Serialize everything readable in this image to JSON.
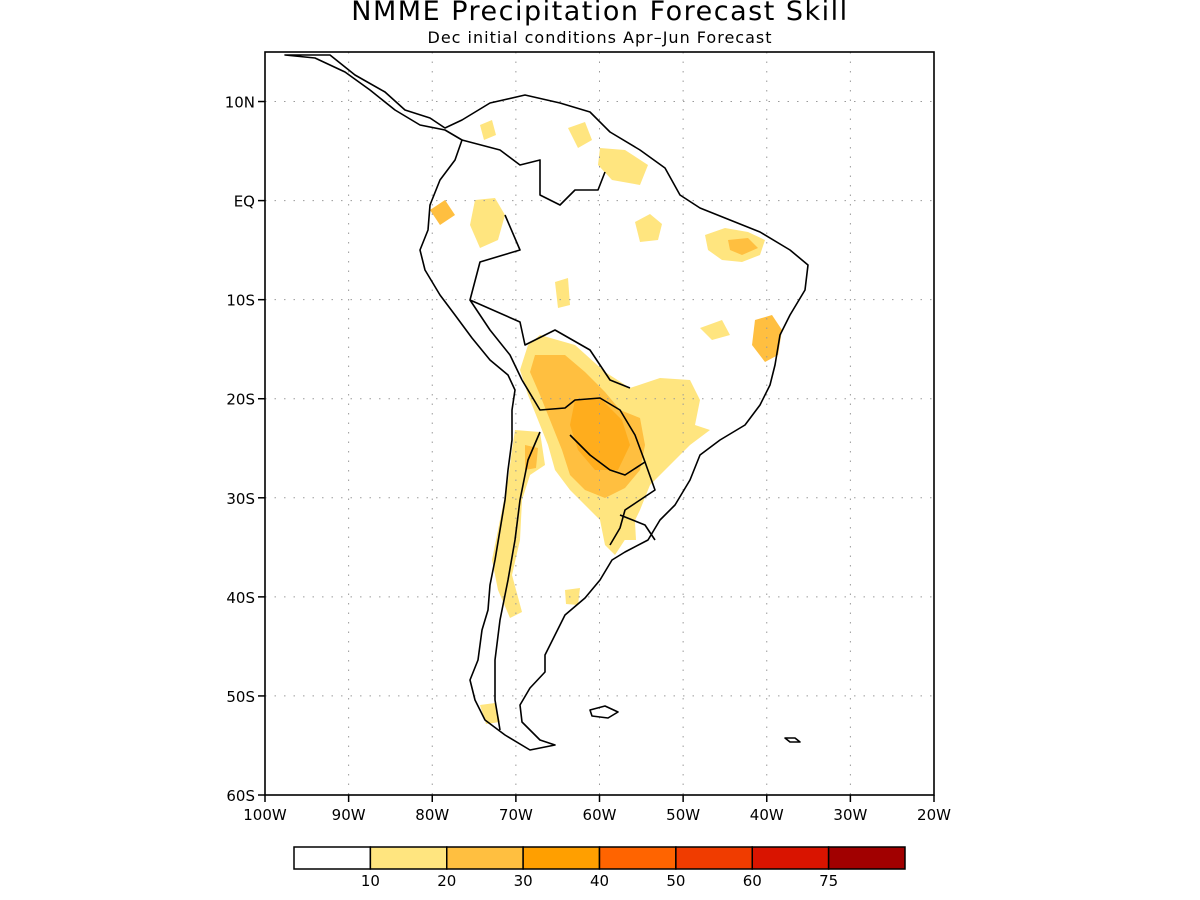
{
  "title": "NMME Precipitation Forecast Skill",
  "subtitle": "Dec initial conditions  Apr–Jun Forecast",
  "map": {
    "lon_range": [
      -100,
      -20
    ],
    "lat_range": [
      -60,
      15
    ],
    "lat_ticks": [
      {
        "value": 10,
        "label": "10N"
      },
      {
        "value": 0,
        "label": "EQ"
      },
      {
        "value": -10,
        "label": "10S"
      },
      {
        "value": -20,
        "label": "20S"
      },
      {
        "value": -30,
        "label": "30S"
      },
      {
        "value": -40,
        "label": "40S"
      },
      {
        "value": -50,
        "label": "50S"
      },
      {
        "value": -60,
        "label": "60S"
      }
    ],
    "lon_ticks": [
      {
        "value": -100,
        "label": "100W"
      },
      {
        "value": -90,
        "label": "90W"
      },
      {
        "value": -80,
        "label": "80W"
      },
      {
        "value": -70,
        "label": "70W"
      },
      {
        "value": -60,
        "label": "60W"
      },
      {
        "value": -50,
        "label": "50W"
      },
      {
        "value": -40,
        "label": "40W"
      },
      {
        "value": -30,
        "label": "30W"
      },
      {
        "value": -20,
        "label": "20W"
      }
    ],
    "grid": "dotted"
  },
  "legend": {
    "colors": [
      "#ffffff",
      "#ffe57f",
      "#ffbf40",
      "#ff9f00",
      "#ff6400",
      "#f03c00",
      "#d91400",
      "#a10000"
    ],
    "labels": [
      "10",
      "20",
      "30",
      "40",
      "50",
      "60",
      "75"
    ]
  }
}
